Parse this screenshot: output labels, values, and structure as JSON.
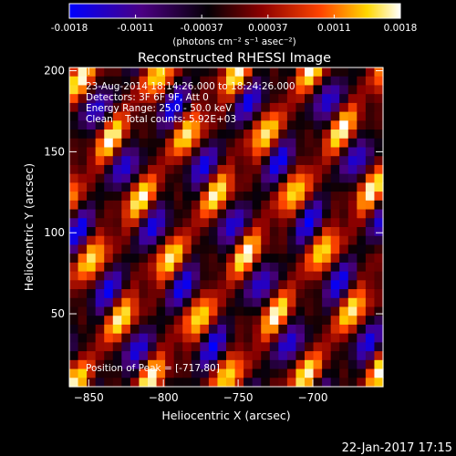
{
  "chart_data": {
    "type": "heatmap",
    "title": "Reconstructed RHESSI Image",
    "colorbar": {
      "range": [
        -0.0018,
        0.0018
      ],
      "ticks": [
        "-0.0018",
        "-0.0011",
        "-0.00037",
        "0.00037",
        "0.0011",
        "0.0018"
      ],
      "unit_label": "(photons cm⁻² s⁻¹ asec⁻²)",
      "colors": [
        "#0000ff",
        "#4b0082",
        "#000000",
        "#8b0000",
        "#ff4500",
        "#ffd700",
        "#ffffff"
      ]
    },
    "x_axis": {
      "label": "Heliocentric X (arcsec)",
      "range": [
        -863,
        -653
      ],
      "ticks": [
        -850,
        -800,
        -750,
        -700
      ],
      "tick_labels": [
        "−850",
        "−800",
        "−750",
        "−700"
      ]
    },
    "y_axis": {
      "label": "Heliocentric Y (arcsec)",
      "range": [
        5,
        202
      ],
      "ticks": [
        50,
        100,
        150,
        200
      ],
      "tick_labels": [
        "50",
        "100",
        "150",
        "200"
      ]
    },
    "annotations": [
      "23-Aug-2014 18:14:26.000 to 18:24:26.000",
      "Detectors: 3F 6F 9F, Att 0",
      "Energy Range: 25.0 - 50.0 keV",
      "Clean    Total counts: 5.92E+03"
    ],
    "peak_label": "Position of Peak = [-717,80]",
    "image_pattern": {
      "grid": [
        36,
        36
      ],
      "stripe_direction": "diagonal, rising to upper-right",
      "stripe_period_pixels": 8.6,
      "modulation_period_pixels": 9
    }
  },
  "footer": {
    "timestamp": "22-Jan-2017 17:15"
  }
}
